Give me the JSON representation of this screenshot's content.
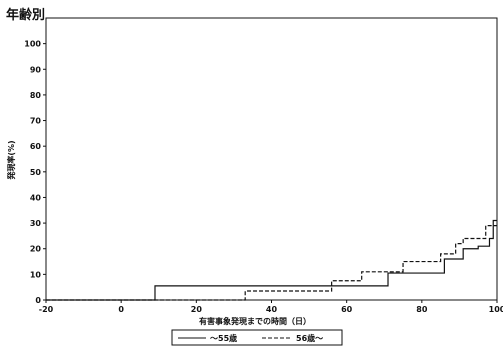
{
  "chart_data": {
    "type": "line",
    "title": "年齢別",
    "xlabel": "有害事象発現までの時間（日）",
    "ylabel": "発現率(%)",
    "xlim": [
      -20,
      100
    ],
    "ylim": [
      0,
      110
    ],
    "xticks": [
      -20,
      0,
      20,
      40,
      60,
      80,
      100
    ],
    "yticks": [
      0,
      10,
      20,
      30,
      40,
      50,
      60,
      70,
      80,
      90,
      100
    ],
    "grid": false,
    "legend_position": "bottom-center",
    "step": true,
    "series": [
      {
        "name": "〜55歳",
        "style": "solid",
        "color": "#111111",
        "x": [
          -20,
          9,
          71,
          86,
          91,
          95,
          98,
          99,
          100
        ],
        "y": [
          0,
          5.5,
          10.5,
          16,
          20,
          21,
          24,
          31,
          31
        ]
      },
      {
        "name": "56歳〜",
        "style": "dashed",
        "color": "#111111",
        "x": [
          -20,
          33,
          56,
          64,
          75,
          85,
          89,
          91,
          97,
          99,
          100
        ],
        "y": [
          0,
          3.5,
          7.5,
          11,
          15,
          18,
          22,
          24,
          29,
          29,
          29
        ]
      }
    ]
  }
}
